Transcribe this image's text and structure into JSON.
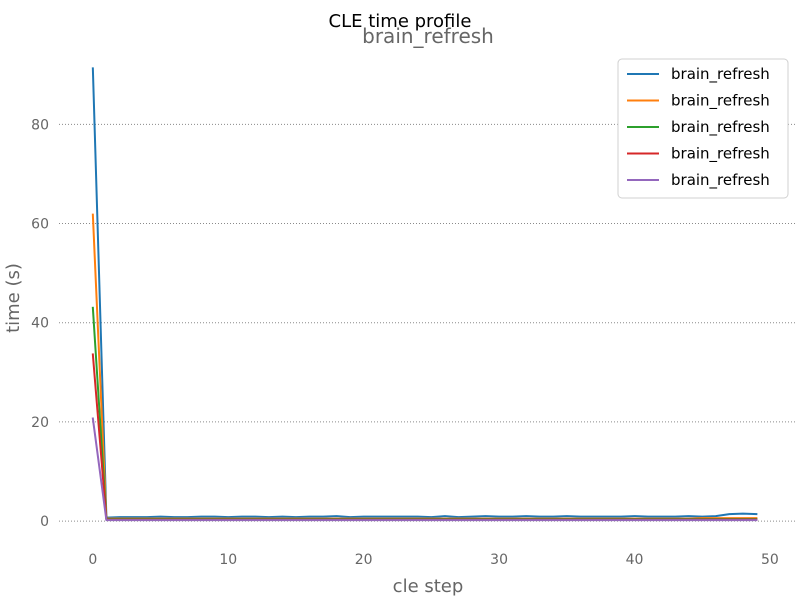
{
  "chart_data": {
    "type": "line",
    "suptitle": "CLE time profile",
    "title": "brain_refresh",
    "xlabel": "cle step",
    "ylabel": "time (s)",
    "xlim": [
      -2.5,
      52
    ],
    "ylim": [
      -2,
      95
    ],
    "xticks": [
      0,
      10,
      20,
      30,
      40,
      50
    ],
    "yticks": [
      0,
      20,
      40,
      60,
      80
    ],
    "grid": "y-dotted",
    "legend_position": "top-right",
    "series": [
      {
        "name": "brain_refresh",
        "color": "#1f77b4",
        "x": [
          0,
          1,
          2,
          3,
          4,
          5,
          6,
          7,
          8,
          9,
          10,
          11,
          12,
          13,
          14,
          15,
          16,
          17,
          18,
          19,
          20,
          21,
          22,
          23,
          24,
          25,
          26,
          27,
          28,
          29,
          30,
          31,
          32,
          33,
          34,
          35,
          36,
          37,
          38,
          39,
          40,
          41,
          42,
          43,
          44,
          45,
          46,
          47,
          48,
          49
        ],
        "values": [
          91.3,
          0.7,
          0.8,
          0.8,
          0.8,
          0.9,
          0.8,
          0.8,
          0.9,
          0.9,
          0.8,
          0.9,
          0.9,
          0.8,
          0.9,
          0.8,
          0.9,
          0.9,
          1.0,
          0.8,
          0.9,
          0.9,
          0.9,
          0.9,
          0.9,
          0.8,
          1.0,
          0.8,
          0.9,
          1.0,
          0.9,
          0.9,
          1.0,
          0.9,
          0.9,
          1.0,
          0.9,
          0.9,
          0.9,
          0.9,
          1.0,
          0.9,
          0.9,
          0.9,
          1.0,
          0.9,
          1.0,
          1.4,
          1.5,
          1.4
        ]
      },
      {
        "name": "brain_refresh",
        "color": "#ff7f0e",
        "x": [
          0,
          1,
          2,
          3,
          4,
          5,
          6,
          7,
          8,
          9,
          10,
          11,
          12,
          13,
          14,
          15,
          16,
          17,
          18,
          19,
          20,
          21,
          22,
          23,
          24,
          25,
          26,
          27,
          28,
          29,
          30,
          31,
          32,
          33,
          34,
          35,
          36,
          37,
          38,
          39,
          40,
          41,
          42,
          43,
          44,
          45,
          46,
          47,
          48,
          49
        ],
        "values": [
          61.8,
          0.5,
          0.5,
          0.5,
          0.5,
          0.5,
          0.5,
          0.5,
          0.5,
          0.5,
          0.5,
          0.5,
          0.5,
          0.5,
          0.5,
          0.5,
          0.5,
          0.5,
          0.5,
          0.5,
          0.5,
          0.5,
          0.5,
          0.5,
          0.5,
          0.5,
          0.5,
          0.5,
          0.5,
          0.5,
          0.5,
          0.5,
          0.5,
          0.5,
          0.5,
          0.5,
          0.5,
          0.5,
          0.5,
          0.5,
          0.5,
          0.5,
          0.5,
          0.5,
          0.5,
          0.6,
          0.6,
          0.6,
          0.6,
          0.6
        ]
      },
      {
        "name": "brain_refresh",
        "color": "#2ca02c",
        "x": [
          0,
          1,
          2,
          3,
          4,
          5,
          6,
          7,
          8,
          9,
          10,
          11,
          12,
          13,
          14,
          15,
          16,
          17,
          18,
          19,
          20,
          21,
          22,
          23,
          24,
          25,
          26,
          27,
          28,
          29,
          30,
          31,
          32,
          33,
          34,
          35,
          36,
          37,
          38,
          39,
          40,
          41,
          42,
          43,
          44,
          45,
          46,
          47,
          48,
          49
        ],
        "values": [
          43.0,
          0.4,
          0.4,
          0.4,
          0.4,
          0.4,
          0.4,
          0.4,
          0.4,
          0.4,
          0.4,
          0.4,
          0.4,
          0.4,
          0.4,
          0.4,
          0.4,
          0.4,
          0.4,
          0.4,
          0.4,
          0.4,
          0.4,
          0.4,
          0.4,
          0.4,
          0.4,
          0.4,
          0.4,
          0.4,
          0.4,
          0.4,
          0.4,
          0.4,
          0.4,
          0.4,
          0.4,
          0.4,
          0.4,
          0.4,
          0.4,
          0.4,
          0.4,
          0.4,
          0.4,
          0.4,
          0.4,
          0.4,
          0.4,
          0.4
        ]
      },
      {
        "name": "brain_refresh",
        "color": "#d62728",
        "x": [
          0,
          1,
          2,
          3,
          4,
          5,
          6,
          7,
          8,
          9,
          10,
          11,
          12,
          13,
          14,
          15,
          16,
          17,
          18,
          19,
          20,
          21,
          22,
          23,
          24,
          25,
          26,
          27,
          28,
          29,
          30,
          31,
          32,
          33,
          34,
          35,
          36,
          37,
          38,
          39,
          40,
          41,
          42,
          43,
          44,
          45,
          46,
          47,
          48,
          49
        ],
        "values": [
          33.6,
          0.3,
          0.3,
          0.3,
          0.3,
          0.3,
          0.3,
          0.3,
          0.3,
          0.3,
          0.3,
          0.3,
          0.3,
          0.3,
          0.3,
          0.3,
          0.3,
          0.3,
          0.3,
          0.3,
          0.3,
          0.3,
          0.3,
          0.3,
          0.3,
          0.3,
          0.3,
          0.3,
          0.3,
          0.3,
          0.3,
          0.3,
          0.3,
          0.3,
          0.3,
          0.3,
          0.3,
          0.3,
          0.3,
          0.3,
          0.3,
          0.3,
          0.3,
          0.3,
          0.3,
          0.3,
          0.3,
          0.3,
          0.3,
          0.3
        ]
      },
      {
        "name": "brain_refresh",
        "color": "#9467bd",
        "x": [
          0,
          1,
          2,
          3,
          4,
          5,
          6,
          7,
          8,
          9,
          10,
          11,
          12,
          13,
          14,
          15,
          16,
          17,
          18,
          19,
          20,
          21,
          22,
          23,
          24,
          25,
          26,
          27,
          28,
          29,
          30,
          31,
          32,
          33,
          34,
          35,
          36,
          37,
          38,
          39,
          40,
          41,
          42,
          43,
          44,
          45,
          46,
          47,
          48,
          49
        ],
        "values": [
          20.7,
          0.2,
          0.2,
          0.2,
          0.2,
          0.2,
          0.2,
          0.2,
          0.2,
          0.2,
          0.2,
          0.2,
          0.2,
          0.2,
          0.2,
          0.2,
          0.2,
          0.2,
          0.2,
          0.2,
          0.2,
          0.2,
          0.2,
          0.2,
          0.2,
          0.2,
          0.2,
          0.2,
          0.2,
          0.2,
          0.2,
          0.2,
          0.2,
          0.2,
          0.2,
          0.2,
          0.2,
          0.2,
          0.2,
          0.2,
          0.2,
          0.2,
          0.2,
          0.2,
          0.2,
          0.2,
          0.2,
          0.2,
          0.2,
          0.2
        ]
      }
    ]
  }
}
